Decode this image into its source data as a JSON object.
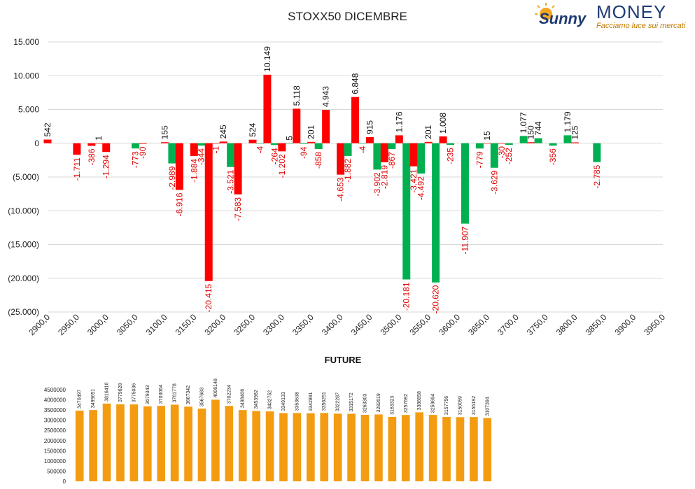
{
  "main_title": "STOXX50 DICEMBRE",
  "future_title": "FUTURE",
  "logo": {
    "brand_script": "Sunny",
    "brand_word": "MONEY",
    "tagline": "Facciamo luce sui mercati"
  },
  "colors": {
    "red": "#ff0000",
    "green": "#00b050",
    "orange": "#f39c12",
    "label_red": "#e00000",
    "grid": "#d9d9d9"
  },
  "chart_data": [
    {
      "type": "bar",
      "title": "STOXX50 DICEMBRE",
      "ylim": [
        -25000,
        15000
      ],
      "grid": true,
      "y_ticks": [
        "15.000",
        "10.000",
        "5.000",
        "0",
        "(5.000)",
        "(10.000)",
        "(15.000)",
        "(20.000)",
        "(25.000)"
      ],
      "y_tick_values": [
        15000,
        10000,
        5000,
        0,
        -5000,
        -10000,
        -15000,
        -20000,
        -25000
      ],
      "x_ticks": [
        "2900,0",
        "2950,0",
        "3000,0",
        "3050,0",
        "3100,0",
        "3150,0",
        "3200,0",
        "3250,0",
        "3300,0",
        "3350,0",
        "3400,0",
        "3450,0",
        "3500,0",
        "3550,0",
        "3600,0",
        "3650,0",
        "3700,0",
        "3750,0",
        "3800,0",
        "3850,0",
        "3900,0",
        "3950,0"
      ],
      "x_tick_values": [
        2900,
        2950,
        3000,
        3050,
        3100,
        3150,
        3200,
        3250,
        3300,
        3350,
        3400,
        3450,
        3500,
        3550,
        3600,
        3650,
        3700,
        3750,
        3800,
        3850,
        3900,
        3950
      ],
      "bars": [
        {
          "strike": 2900,
          "value": 542,
          "label": "542",
          "color": "red"
        },
        {
          "strike": 2950,
          "value": -1711,
          "label": "-1.711",
          "color": "red"
        },
        {
          "strike": 2975,
          "value": -386,
          "label": "-386",
          "color": "red"
        },
        {
          "strike": 2987.5,
          "value": 1,
          "label": "1",
          "color": "red"
        },
        {
          "strike": 3000,
          "value": -1294,
          "label": "-1.294",
          "color": "red"
        },
        {
          "strike": 3050,
          "value": -773,
          "label": "-773",
          "color": "green"
        },
        {
          "strike": 3062.5,
          "value": -90,
          "label": "-90",
          "color": "red"
        },
        {
          "strike": 3100,
          "value": 155,
          "label": "155",
          "color": "red"
        },
        {
          "strike": 3112.5,
          "value": -2989,
          "label": "-2.989",
          "color": "green"
        },
        {
          "strike": 3125,
          "value": -6916,
          "label": "-6.916",
          "color": "red"
        },
        {
          "strike": 3150,
          "value": -1884,
          "label": "-1.884",
          "color": "red"
        },
        {
          "strike": 3162.5,
          "value": -344,
          "label": "-344",
          "color": "green"
        },
        {
          "strike": 3175,
          "value": -20415,
          "label": "-20.415",
          "color": "red"
        },
        {
          "strike": 3187.5,
          "value": -1,
          "label": "-1",
          "color": "red"
        },
        {
          "strike": 3200,
          "value": 245,
          "label": "245",
          "color": "red"
        },
        {
          "strike": 3212.5,
          "value": -3521,
          "label": "-3.521",
          "color": "green"
        },
        {
          "strike": 3225,
          "value": -7583,
          "label": "-7.583",
          "color": "red"
        },
        {
          "strike": 3250,
          "value": 524,
          "label": "524",
          "color": "red"
        },
        {
          "strike": 3262.5,
          "value": -4,
          "label": "-4",
          "color": "green"
        },
        {
          "strike": 3275,
          "value": 10149,
          "label": "10.149",
          "color": "red"
        },
        {
          "strike": 3287.5,
          "value": -264,
          "label": "-264",
          "color": "green"
        },
        {
          "strike": 3300,
          "value": -1202,
          "label": "-1.202",
          "color": "red"
        },
        {
          "strike": 3312.5,
          "value": 5,
          "label": "5",
          "color": "green"
        },
        {
          "strike": 3325,
          "value": 5118,
          "label": "5.118",
          "color": "red"
        },
        {
          "strike": 3337.5,
          "value": -94,
          "label": "-94",
          "color": "green"
        },
        {
          "strike": 3350,
          "value": 201,
          "label": "201",
          "color": "red"
        },
        {
          "strike": 3362.5,
          "value": -858,
          "label": "-858",
          "color": "green"
        },
        {
          "strike": 3375,
          "value": 4943,
          "label": "4.943",
          "color": "red"
        },
        {
          "strike": 3400,
          "value": -4653,
          "label": "-4.653",
          "color": "red"
        },
        {
          "strike": 3412.5,
          "value": -1882,
          "label": "-1.882",
          "color": "green"
        },
        {
          "strike": 3425,
          "value": 6848,
          "label": "6.848",
          "color": "red"
        },
        {
          "strike": 3437.5,
          "value": -4,
          "label": "-4",
          "color": "green"
        },
        {
          "strike": 3450,
          "value": 915,
          "label": "915",
          "color": "red"
        },
        {
          "strike": 3462.5,
          "value": -3902,
          "label": "-3.902",
          "color": "green"
        },
        {
          "strike": 3475,
          "value": -2819,
          "label": "-2.819",
          "color": "red"
        },
        {
          "strike": 3487.5,
          "value": -867,
          "label": "-867",
          "color": "green"
        },
        {
          "strike": 3500,
          "value": 1176,
          "label": "1.176",
          "color": "red"
        },
        {
          "strike": 3512.5,
          "value": -20181,
          "label": "-20.181",
          "color": "green"
        },
        {
          "strike": 3525,
          "value": -3421,
          "label": "-3.421",
          "color": "red"
        },
        {
          "strike": 3537.5,
          "value": -4492,
          "label": "-4.492",
          "color": "green"
        },
        {
          "strike": 3550,
          "value": 201,
          "label": "201",
          "color": "red"
        },
        {
          "strike": 3562.5,
          "value": -20620,
          "label": "-20.620",
          "color": "green"
        },
        {
          "strike": 3575,
          "value": 1008,
          "label": "1.008",
          "color": "red"
        },
        {
          "strike": 3587.5,
          "value": -235,
          "label": "-235",
          "color": "green"
        },
        {
          "strike": 3612.5,
          "value": -11907,
          "label": "-11.907",
          "color": "green"
        },
        {
          "strike": 3637.5,
          "value": -779,
          "label": "-779",
          "color": "green"
        },
        {
          "strike": 3650,
          "value": 15,
          "label": "15",
          "color": "red"
        },
        {
          "strike": 3662.5,
          "value": -3629,
          "label": "-3.629",
          "color": "green"
        },
        {
          "strike": 3675,
          "value": -30,
          "label": "-30",
          "color": "red"
        },
        {
          "strike": 3687.5,
          "value": -252,
          "label": "-252",
          "color": "green"
        },
        {
          "strike": 3712.5,
          "value": 1077,
          "label": "1.077",
          "color": "green"
        },
        {
          "strike": 3725,
          "value": 150,
          "label": "150",
          "color": "red"
        },
        {
          "strike": 3737.5,
          "value": 744,
          "label": "744",
          "color": "green"
        },
        {
          "strike": 3762.5,
          "value": -356,
          "label": "-356",
          "color": "green"
        },
        {
          "strike": 3787.5,
          "value": 1179,
          "label": "1.179",
          "color": "green"
        },
        {
          "strike": 3800,
          "value": 125,
          "label": "125",
          "color": "red"
        },
        {
          "strike": 3837.5,
          "value": -2785,
          "label": "-2.785",
          "color": "green"
        }
      ]
    },
    {
      "type": "bar",
      "title": "FUTURE",
      "ylim": [
        0,
        4500000
      ],
      "grid": false,
      "y_ticks": [
        "4500000",
        "4000000",
        "3500000",
        "3000000",
        "2500000",
        "2000000",
        "1500000",
        "1000000",
        "500000",
        "0"
      ],
      "y_tick_values": [
        4500000,
        4000000,
        3500000,
        3000000,
        2500000,
        2000000,
        1500000,
        1000000,
        500000,
        0
      ],
      "values": [
        3470497,
        3499651,
        3816418,
        3779628,
        3775036,
        3679343,
        3703064,
        3761778,
        3667342,
        3567683,
        4006148,
        3702234,
        3498406,
        3453982,
        3432752,
        3349133,
        3353638,
        3342891,
        3356251,
        3322287,
        3315172,
        3263303,
        3282619,
        3163323,
        3257692,
        3386658,
        3259694,
        3157756,
        3150059,
        3155192,
        3107394
      ],
      "labels": [
        "3470497",
        "3499651",
        "3816418",
        "3779628",
        "3775036",
        "3679343",
        "3703064",
        "3761778",
        "3667342",
        "3567683",
        "4006148",
        "3702234",
        "3498406",
        "3453982",
        "3432752",
        "3349133",
        "3353638",
        "3342891",
        "3356251",
        "3322287",
        "3315172",
        "3263303",
        "3282619",
        "3163323",
        "3257692",
        "3386658",
        "3259694",
        "3157756",
        "3150059",
        "3155192",
        "3107394"
      ],
      "color": "orange"
    }
  ]
}
